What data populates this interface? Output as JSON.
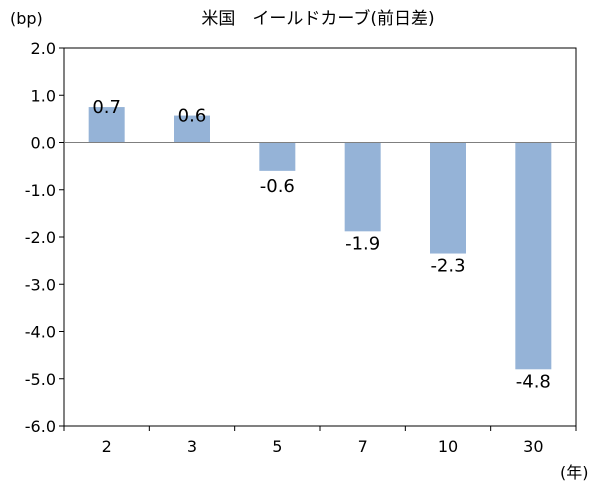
{
  "chart_data": {
    "type": "bar",
    "title": "米国　イールドカーブ(前日差)",
    "ylabel": "(bp)",
    "xlabel": "(年)",
    "categories": [
      "2",
      "3",
      "5",
      "7",
      "10",
      "30"
    ],
    "values": [
      0.75,
      0.57,
      -0.6,
      -1.88,
      -2.35,
      -4.8
    ],
    "data_labels": [
      "0.7",
      "0.6",
      "-0.6",
      "-1.9",
      "-2.3",
      "-4.8"
    ],
    "yticks": [
      "2.0",
      "1.0",
      "0.0",
      "-1.0",
      "-2.0",
      "-3.0",
      "-4.0",
      "-5.0",
      "-6.0"
    ],
    "ylim": [
      -6,
      2
    ],
    "grid": false,
    "colors": {
      "bar": "#95b3d7",
      "axis": "#000000",
      "zero_line": "#7f7f7f"
    }
  }
}
